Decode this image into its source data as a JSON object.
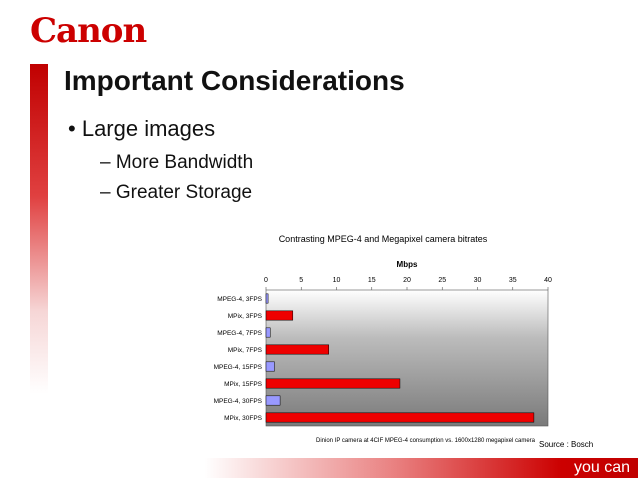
{
  "brand": {
    "logo_text": "Canon",
    "tagline": "you can",
    "accent": "#cc0000"
  },
  "slide": {
    "title": "Important Considerations",
    "bullet": "Large images",
    "subbullets": [
      "– More Bandwidth",
      "– Greater Storage"
    ],
    "caption": "Dinion IP camera at 4CIF MPEG-4 consumption vs. 1600x1280 megapixel camera",
    "source": "Source : Bosch"
  },
  "chart_data": {
    "type": "bar",
    "orientation": "horizontal",
    "title": "Contrasting MPEG-4 and Megapixel camera bitrates",
    "xlabel": "Mbps",
    "ylabel": "",
    "xlim": [
      0,
      40
    ],
    "xticks": [
      0,
      5,
      10,
      15,
      20,
      25,
      30,
      35,
      40
    ],
    "grid": false,
    "plot_background": "gradient-grey",
    "categories": [
      "MPEG-4, 3FPS",
      "MPix, 3FPS",
      "MPEG-4, 7FPS",
      "MPix, 7FPS",
      "MPEG-4, 15FPS",
      "MPix, 15FPS",
      "MPEG-4, 30FPS",
      "MPix, 30FPS"
    ],
    "values": [
      0.3,
      3.8,
      0.6,
      8.9,
      1.2,
      19.0,
      2.0,
      38.0
    ],
    "colors": [
      "#9999ff",
      "#ee0000",
      "#9999ff",
      "#ee0000",
      "#9999ff",
      "#ee0000",
      "#9999ff",
      "#ee0000"
    ]
  }
}
